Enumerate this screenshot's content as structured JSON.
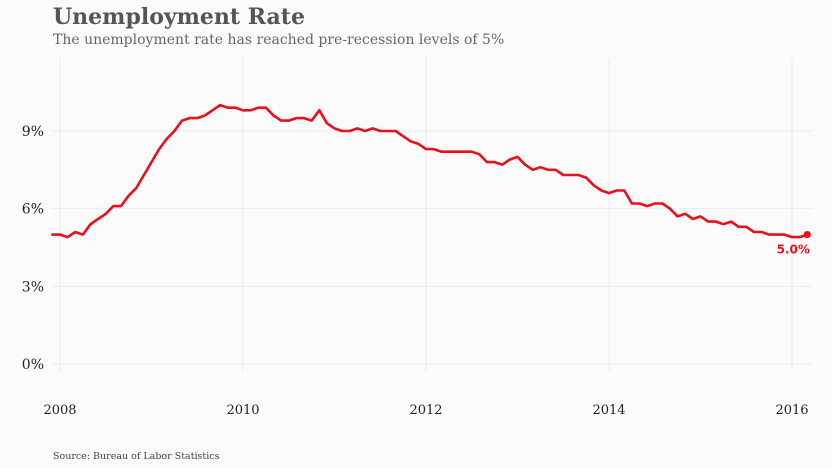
{
  "title": "Unemployment Rate",
  "subtitle": "The unemployment rate has reached pre-recession levels of 5%",
  "source": "Source: Bureau of Labor Statistics",
  "colors": {
    "line": "#e8101c",
    "grid": "#ebebeb",
    "background": "#fbfbfb"
  },
  "chart_data": {
    "type": "line",
    "title": "Unemployment Rate",
    "subtitle": "The unemployment rate has reached pre-recession levels of 5%",
    "xlabel": "",
    "ylabel": "",
    "x_domain": [
      "2007-12",
      "2016-04"
    ],
    "ylim": [
      0,
      11
    ],
    "y_ticks": [
      0,
      3,
      6,
      9
    ],
    "y_tick_labels": [
      "0%",
      "3%",
      "6%",
      "9%"
    ],
    "x_ticks": [
      2008,
      2010,
      2012,
      2014,
      2016
    ],
    "x_tick_labels": [
      "2008",
      "2010",
      "2012",
      "2014",
      "2016"
    ],
    "grid": true,
    "end_label": "5.0%",
    "series": [
      {
        "color": "#e8101c",
        "x": [
          "2007-12",
          "2008-01",
          "2008-02",
          "2008-03",
          "2008-04",
          "2008-05",
          "2008-06",
          "2008-07",
          "2008-08",
          "2008-09",
          "2008-10",
          "2008-11",
          "2008-12",
          "2009-01",
          "2009-02",
          "2009-03",
          "2009-04",
          "2009-05",
          "2009-06",
          "2009-07",
          "2009-08",
          "2009-09",
          "2009-10",
          "2009-11",
          "2009-12",
          "2010-01",
          "2010-02",
          "2010-03",
          "2010-04",
          "2010-05",
          "2010-06",
          "2010-07",
          "2010-08",
          "2010-09",
          "2010-10",
          "2010-11",
          "2010-12",
          "2011-01",
          "2011-02",
          "2011-03",
          "2011-04",
          "2011-05",
          "2011-06",
          "2011-07",
          "2011-08",
          "2011-09",
          "2011-10",
          "2011-11",
          "2011-12",
          "2012-01",
          "2012-02",
          "2012-03",
          "2012-04",
          "2012-05",
          "2012-06",
          "2012-07",
          "2012-08",
          "2012-09",
          "2012-10",
          "2012-11",
          "2012-12",
          "2013-01",
          "2013-02",
          "2013-03",
          "2013-04",
          "2013-05",
          "2013-06",
          "2013-07",
          "2013-08",
          "2013-09",
          "2013-10",
          "2013-11",
          "2013-12",
          "2014-01",
          "2014-02",
          "2014-03",
          "2014-04",
          "2014-05",
          "2014-06",
          "2014-07",
          "2014-08",
          "2014-09",
          "2014-10",
          "2014-11",
          "2014-12",
          "2015-01",
          "2015-02",
          "2015-03",
          "2015-04",
          "2015-05",
          "2015-06",
          "2015-07",
          "2015-08",
          "2015-09",
          "2015-10",
          "2015-11",
          "2015-12",
          "2016-01",
          "2016-02",
          "2016-03"
        ],
        "values": [
          5.0,
          5.0,
          4.9,
          5.1,
          5.0,
          5.4,
          5.6,
          5.8,
          6.1,
          6.1,
          6.5,
          6.8,
          7.3,
          7.8,
          8.3,
          8.7,
          9.0,
          9.4,
          9.5,
          9.5,
          9.6,
          9.8,
          10.0,
          9.9,
          9.9,
          9.8,
          9.8,
          9.9,
          9.9,
          9.6,
          9.4,
          9.4,
          9.5,
          9.5,
          9.4,
          9.8,
          9.3,
          9.1,
          9.0,
          9.0,
          9.1,
          9.0,
          9.1,
          9.0,
          9.0,
          9.0,
          8.8,
          8.6,
          8.5,
          8.3,
          8.3,
          8.2,
          8.2,
          8.2,
          8.2,
          8.2,
          8.1,
          7.8,
          7.8,
          7.7,
          7.9,
          8.0,
          7.7,
          7.5,
          7.6,
          7.5,
          7.5,
          7.3,
          7.3,
          7.3,
          7.2,
          6.9,
          6.7,
          6.6,
          6.7,
          6.7,
          6.2,
          6.2,
          6.1,
          6.2,
          6.2,
          6.0,
          5.7,
          5.8,
          5.6,
          5.7,
          5.5,
          5.5,
          5.4,
          5.5,
          5.3,
          5.3,
          5.1,
          5.1,
          5.0,
          5.0,
          5.0,
          4.9,
          4.9,
          5.0
        ]
      }
    ]
  }
}
